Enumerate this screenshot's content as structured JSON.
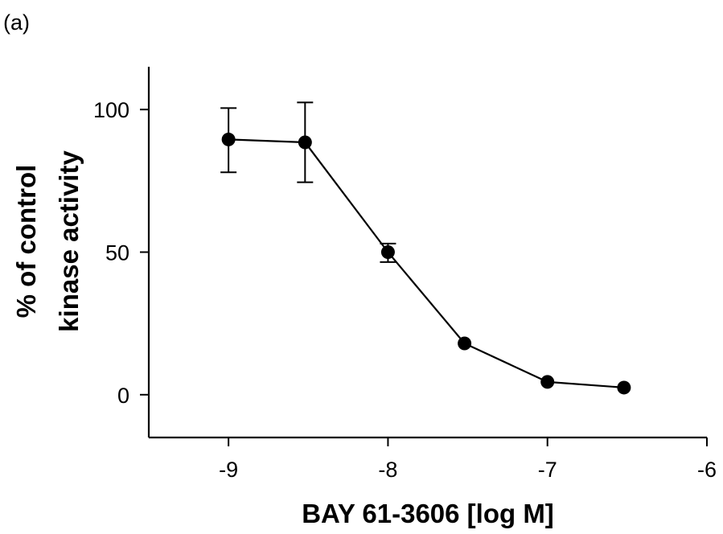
{
  "panel_label": "(a)",
  "chart_data": {
    "type": "line",
    "title": "",
    "xlabel": "BAY 61-3606 [log M]",
    "ylabel_lines": [
      "% of control",
      "kinase activity"
    ],
    "xlim": [
      -9.5,
      -6
    ],
    "ylim": [
      -15,
      115
    ],
    "xticks": [
      -9,
      -8,
      -7,
      -6
    ],
    "xtick_labels": [
      "-9",
      "-8",
      "-7",
      "-6"
    ],
    "yticks": [
      0,
      50,
      100
    ],
    "ytick_labels": [
      "0",
      "50",
      "100"
    ],
    "grid": false,
    "legend": "none",
    "series": [
      {
        "x": [
          -9.0,
          -8.52,
          -8.0,
          -7.52,
          -7.0,
          -6.52
        ],
        "y": [
          89.5,
          88.5,
          50.0,
          18.0,
          4.5,
          2.5
        ],
        "y_err_low": [
          78,
          74.5,
          46.5,
          null,
          null,
          null
        ],
        "y_err_high": [
          100.5,
          102.5,
          53,
          null,
          null,
          null
        ],
        "color": "#000000"
      }
    ]
  }
}
